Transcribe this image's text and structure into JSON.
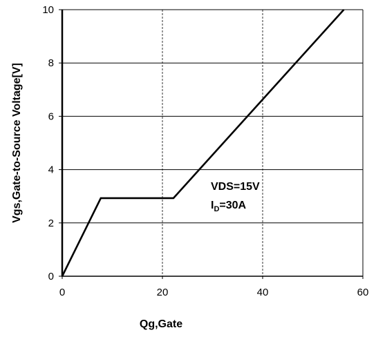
{
  "chart_data": {
    "type": "line",
    "title": "",
    "xlabel": "Qg,Gate",
    "ylabel": "Vgs,Gate-to-Source Voltage[V]",
    "xlim": [
      0,
      60
    ],
    "ylim": [
      0,
      10
    ],
    "x_ticks": [
      0,
      20,
      40,
      60
    ],
    "y_ticks": [
      0,
      2,
      4,
      6,
      8,
      10
    ],
    "x_grid": "dashed",
    "y_grid": "solid",
    "series": [
      {
        "x": [
          0,
          7.7,
          22.2,
          56.2
        ],
        "y": [
          0,
          2.93,
          2.93,
          10
        ]
      }
    ],
    "annotations": [
      {
        "text": "VDS=15V"
      },
      {
        "main": "I",
        "sub": "D",
        "rest": "=30A"
      }
    ]
  }
}
